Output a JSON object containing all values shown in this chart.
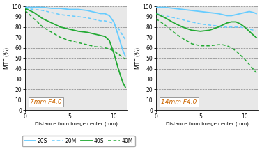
{
  "panels": [
    {
      "label": "7mm F4.0",
      "curves": {
        "20S": {
          "x": [
            0,
            1,
            2,
            3,
            4,
            5,
            6,
            7,
            7.5,
            8,
            8.5,
            9,
            9.5,
            10,
            10.5,
            11,
            11.3
          ],
          "y": [
            99,
            99,
            99,
            98,
            98,
            97,
            97,
            96,
            95,
            94,
            93,
            93,
            91,
            85,
            72,
            58,
            52
          ]
        },
        "20M": {
          "x": [
            0,
            1,
            2,
            3,
            4,
            5,
            6,
            7,
            7.5,
            8,
            8.5,
            9,
            9.5,
            10,
            10.5,
            11,
            11.3
          ],
          "y": [
            98,
            97,
            96,
            94,
            92,
            91,
            90,
            89,
            88,
            87,
            86,
            86,
            85,
            83,
            79,
            72,
            68
          ]
        },
        "40S": {
          "x": [
            0,
            1,
            2,
            3,
            4,
            5,
            6,
            7,
            7.5,
            8,
            8.5,
            9,
            9.5,
            10,
            10.5,
            11,
            11.3
          ],
          "y": [
            98,
            94,
            88,
            84,
            80,
            78,
            76,
            75,
            74,
            73,
            72,
            71,
            67,
            55,
            40,
            27,
            22
          ]
        },
        "40M": {
          "x": [
            0,
            1,
            2,
            3,
            4,
            5,
            6,
            7,
            7.5,
            8,
            8.5,
            9,
            9.5,
            10,
            10.5,
            11,
            11.3
          ],
          "y": [
            96,
            88,
            80,
            75,
            70,
            67,
            65,
            63,
            62,
            61,
            61,
            60,
            59,
            57,
            54,
            51,
            49
          ]
        }
      }
    },
    {
      "label": "14mm F4.0",
      "curves": {
        "20S": {
          "x": [
            0,
            1,
            2,
            3,
            4,
            5,
            6,
            7,
            7.5,
            8,
            8.5,
            9,
            9.5,
            10,
            10.5,
            11,
            11.3
          ],
          "y": [
            99,
            99,
            98,
            97,
            96,
            95,
            94,
            93,
            92,
            91,
            91,
            92,
            93,
            94,
            95,
            94,
            93
          ]
        },
        "20M": {
          "x": [
            0,
            1,
            2,
            3,
            4,
            5,
            6,
            7,
            7.5,
            8,
            8.5,
            9,
            9.5,
            10,
            10.5,
            11,
            11.3
          ],
          "y": [
            93,
            91,
            89,
            87,
            85,
            83,
            82,
            81,
            80,
            80,
            80,
            80,
            80,
            79,
            78,
            77,
            76
          ]
        },
        "40S": {
          "x": [
            0,
            1,
            2,
            3,
            4,
            5,
            6,
            7,
            7.5,
            8,
            8.5,
            9,
            9.5,
            10,
            10.5,
            11,
            11.3
          ],
          "y": [
            93,
            89,
            84,
            80,
            77,
            76,
            77,
            80,
            82,
            84,
            85,
            85,
            83,
            80,
            76,
            72,
            70
          ]
        },
        "40M": {
          "x": [
            0,
            1,
            2,
            3,
            4,
            5,
            6,
            7,
            7.5,
            8,
            8.5,
            9,
            9.5,
            10,
            10.5,
            11,
            11.3
          ],
          "y": [
            88,
            82,
            75,
            69,
            64,
            62,
            62,
            63,
            63,
            62,
            60,
            57,
            53,
            49,
            44,
            39,
            36
          ]
        }
      }
    }
  ],
  "colors": {
    "20S": "#66ccff",
    "20M": "#66ccff",
    "40S": "#22aa33",
    "40M": "#22aa33"
  },
  "xlim": [
    0,
    11.5
  ],
  "ylim": [
    0,
    100
  ],
  "xlabel": "Distance from image center (mm)",
  "ylabel": "MTF (%)",
  "yticks": [
    0,
    10,
    20,
    30,
    40,
    50,
    60,
    70,
    80,
    90,
    100
  ],
  "xticks": [
    0,
    5,
    10
  ],
  "grid_yticks": [
    10,
    20,
    30,
    40,
    50,
    60,
    70,
    80,
    90,
    100
  ],
  "bg_color": "#e8e8e8",
  "label_color": "#cc6600"
}
